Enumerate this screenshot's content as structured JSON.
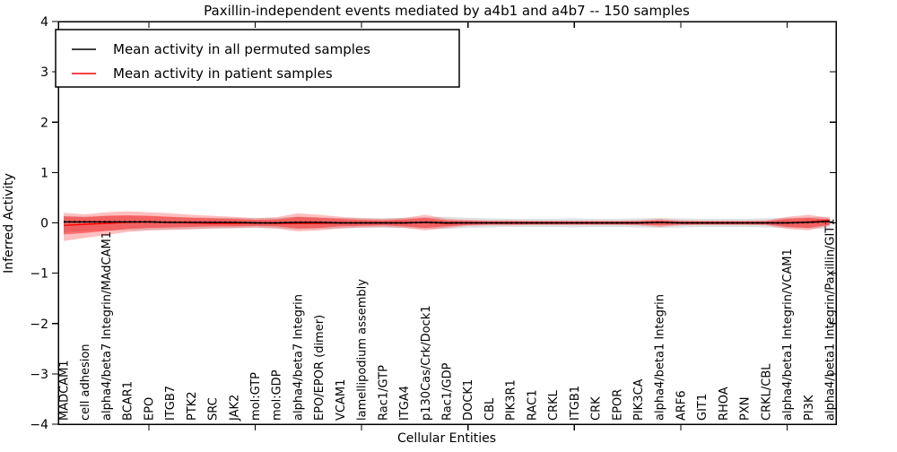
{
  "chart_data": {
    "type": "line",
    "title": "Paxillin-independent events mediated by a4b1 and a4b7 -- 150 samples",
    "xlabel": "Cellular Entities",
    "ylabel": "Inferred Activity",
    "ylim": [
      -4,
      4
    ],
    "yticks": [
      4,
      3,
      2,
      1,
      0,
      -1,
      -2,
      -3,
      -4
    ],
    "ytick_labels": [
      "4",
      "3",
      "2",
      "1",
      "0",
      "−1",
      "−2",
      "−3",
      "−4"
    ],
    "grid": false,
    "legend_position": "upper left",
    "categories": [
      "MADCAM1",
      "cell adhesion",
      "alpha4/beta7 Integrin/MAdCAM1",
      "BCAR1",
      "EPO",
      "ITGB7",
      "PTK2",
      "SRC",
      "JAK2",
      "mol:GTP",
      "mol:GDP",
      "alpha4/beta7 Integrin",
      "EPO/EPOR (dimer)",
      "VCAM1",
      "lamellipodium assembly",
      "Rac1/GTP",
      "ITGA4",
      "p130Cas/Crk/Dock1",
      "Rac1/GDP",
      "DOCK1",
      "CBL",
      "PIK3R1",
      "RAC1",
      "CRKL",
      "ITGB1",
      "CRK",
      "EPOR",
      "PIK3CA",
      "alpha4/beta1 Integrin",
      "ARF6",
      "GIT1",
      "RHOA",
      "PXN",
      "CRKL/CBL",
      "alpha4/beta1 Integrin/VCAM1",
      "PI3K",
      "alpha4/beta1 Integrin/Paxillin/GIT1"
    ],
    "series": [
      {
        "name": "Mean activity in all permuted samples",
        "color": "#000000",
        "values": [
          0.02,
          0.02,
          0.02,
          0.02,
          0.02,
          0.01,
          0.01,
          0.01,
          0.01,
          0.0,
          0.0,
          0.01,
          0.01,
          0.0,
          0.0,
          0.0,
          0.0,
          0.01,
          0.0,
          0.0,
          0.0,
          0.0,
          0.0,
          0.0,
          0.0,
          0.0,
          0.0,
          0.0,
          0.01,
          0.0,
          0.0,
          0.0,
          0.0,
          0.0,
          0.0,
          0.01,
          0.03
        ]
      },
      {
        "name": "Mean activity in patient samples",
        "color": "#ff0000",
        "values": [
          -0.05,
          -0.03,
          -0.01,
          0.01,
          0.02,
          0.01,
          0.0,
          -0.01,
          -0.01,
          0.0,
          -0.01,
          -0.01,
          -0.01,
          0.0,
          0.0,
          0.0,
          0.0,
          0.01,
          -0.01,
          0.0,
          0.0,
          0.0,
          0.0,
          0.0,
          0.0,
          0.0,
          0.0,
          0.0,
          0.01,
          0.0,
          0.0,
          0.0,
          0.0,
          0.0,
          0.0,
          0.02,
          0.05
        ]
      }
    ],
    "bands": [
      {
        "name": "permuted-samples-range",
        "color": "#999999",
        "opacity": 0.3,
        "upper": [
          0.14,
          0.13,
          0.14,
          0.14,
          0.13,
          0.12,
          0.11,
          0.1,
          0.1,
          0.1,
          0.1,
          0.12,
          0.11,
          0.1,
          0.1,
          0.09,
          0.1,
          0.11,
          0.12,
          0.1,
          0.09,
          0.08,
          0.08,
          0.08,
          0.09,
          0.08,
          0.08,
          0.09,
          0.1,
          0.09,
          0.08,
          0.08,
          0.08,
          0.09,
          0.1,
          0.11,
          0.12
        ],
        "lower": [
          -0.19,
          -0.17,
          -0.16,
          -0.15,
          -0.14,
          -0.13,
          -0.12,
          -0.11,
          -0.11,
          -0.1,
          -0.11,
          -0.13,
          -0.12,
          -0.11,
          -0.1,
          -0.1,
          -0.1,
          -0.12,
          -0.12,
          -0.1,
          -0.09,
          -0.08,
          -0.08,
          -0.08,
          -0.09,
          -0.08,
          -0.08,
          -0.09,
          -0.1,
          -0.09,
          -0.08,
          -0.08,
          -0.08,
          -0.09,
          -0.1,
          -0.11,
          -0.12
        ]
      },
      {
        "name": "patient-samples-outer",
        "color": "#ff0000",
        "opacity": 0.25,
        "upper": [
          0.2,
          0.17,
          0.21,
          0.23,
          0.21,
          0.19,
          0.16,
          0.14,
          0.12,
          0.09,
          0.11,
          0.19,
          0.16,
          0.12,
          0.09,
          0.08,
          0.1,
          0.16,
          0.08,
          0.06,
          0.05,
          0.05,
          0.04,
          0.04,
          0.04,
          0.04,
          0.04,
          0.05,
          0.08,
          0.05,
          0.04,
          0.04,
          0.04,
          0.05,
          0.12,
          0.16,
          0.1
        ],
        "lower": [
          -0.36,
          -0.3,
          -0.24,
          -0.18,
          -0.15,
          -0.14,
          -0.13,
          -0.11,
          -0.1,
          -0.09,
          -0.11,
          -0.17,
          -0.15,
          -0.11,
          -0.09,
          -0.08,
          -0.1,
          -0.15,
          -0.1,
          -0.06,
          -0.05,
          -0.05,
          -0.04,
          -0.04,
          -0.04,
          -0.04,
          -0.04,
          -0.05,
          -0.08,
          -0.05,
          -0.04,
          -0.04,
          -0.04,
          -0.05,
          -0.12,
          -0.15,
          -0.05
        ]
      },
      {
        "name": "patient-samples-inner",
        "color": "#ff0000",
        "opacity": 0.42,
        "upper": [
          0.13,
          0.11,
          0.14,
          0.15,
          0.14,
          0.12,
          0.1,
          0.09,
          0.08,
          0.06,
          0.07,
          0.12,
          0.1,
          0.08,
          0.06,
          0.05,
          0.07,
          0.1,
          0.05,
          0.04,
          0.03,
          0.03,
          0.03,
          0.03,
          0.03,
          0.03,
          0.03,
          0.03,
          0.05,
          0.03,
          0.03,
          0.03,
          0.03,
          0.03,
          0.08,
          0.1,
          0.07
        ],
        "lower": [
          -0.23,
          -0.2,
          -0.16,
          -0.12,
          -0.1,
          -0.09,
          -0.08,
          -0.07,
          -0.07,
          -0.06,
          -0.07,
          -0.11,
          -0.1,
          -0.07,
          -0.06,
          -0.05,
          -0.07,
          -0.1,
          -0.07,
          -0.04,
          -0.03,
          -0.03,
          -0.03,
          -0.03,
          -0.03,
          -0.03,
          -0.03,
          -0.03,
          -0.05,
          -0.03,
          -0.03,
          -0.03,
          -0.03,
          -0.03,
          -0.08,
          -0.1,
          -0.04
        ]
      }
    ]
  },
  "legend": {
    "entries": [
      {
        "label": "Mean activity in all permuted samples",
        "color": "#000000"
      },
      {
        "label": "Mean activity in patient samples",
        "color": "#ff0000"
      }
    ]
  }
}
